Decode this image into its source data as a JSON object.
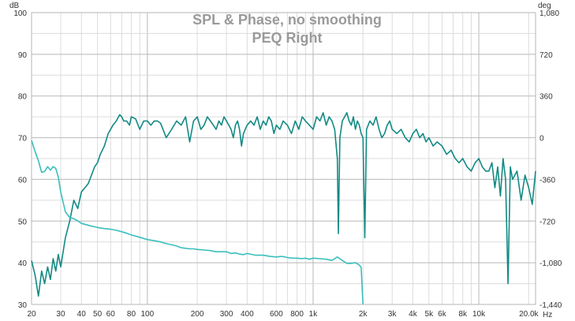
{
  "chart_data": {
    "type": "line",
    "title": "SPL & Phase, no smoothing",
    "subtitle": "PEQ Right",
    "ylabel": "dB",
    "y2label": "deg",
    "xunit": "Hz",
    "xscale": "log",
    "xlim": [
      20,
      22000
    ],
    "ylim": [
      30,
      100
    ],
    "y2lim": [
      -1440,
      1080
    ],
    "grid": true,
    "x_ticks": [
      20,
      30,
      40,
      50,
      60,
      80,
      100,
      200,
      300,
      400,
      600,
      800,
      1000,
      2000,
      3000,
      4000,
      5000,
      6000,
      8000,
      10000,
      20000
    ],
    "x_tick_labels": [
      "20",
      "30",
      "40",
      "50",
      "60",
      "80",
      "100",
      "200",
      "300",
      "400",
      "600",
      "800",
      "1k",
      "2k",
      "3k",
      "4k",
      "5k",
      "6k",
      "8k",
      "10k",
      "20.0k"
    ],
    "y_ticks": [
      30,
      40,
      50,
      60,
      70,
      80,
      90,
      100
    ],
    "y_tick_labels": [
      "30",
      "40",
      "50",
      "60",
      "70",
      "80",
      "90",
      "100"
    ],
    "y2_ticks": [
      -1440,
      -1080,
      -720,
      -360,
      0,
      360,
      720,
      1080
    ],
    "y2_tick_labels": [
      "-1,440",
      "-1,080",
      "-720",
      "-360",
      "0",
      "360",
      "720",
      "1,080"
    ],
    "series": [
      {
        "name": "",
        "axis": "left",
        "color": "#128a84",
        "x": [
          20,
          21,
          22,
          23,
          24,
          25,
          26,
          27,
          28,
          29,
          30,
          32,
          34,
          36,
          38,
          40,
          42,
          44,
          46,
          48,
          50,
          52,
          55,
          58,
          60,
          62,
          65,
          68,
          70,
          72,
          75,
          78,
          80,
          85,
          90,
          95,
          100,
          105,
          110,
          115,
          120,
          130,
          140,
          150,
          160,
          170,
          180,
          190,
          200,
          210,
          220,
          230,
          240,
          250,
          260,
          270,
          280,
          290,
          300,
          310,
          320,
          330,
          340,
          350,
          360,
          370,
          380,
          400,
          420,
          440,
          460,
          480,
          500,
          520,
          540,
          560,
          580,
          600,
          630,
          660,
          700,
          740,
          780,
          820,
          860,
          900,
          950,
          1000,
          1050,
          1100,
          1150,
          1200,
          1250,
          1300,
          1350,
          1400,
          1420,
          1450,
          1500,
          1550,
          1600,
          1650,
          1700,
          1750,
          1800,
          1850,
          1900,
          1950,
          2000,
          2050,
          2100,
          2200,
          2300,
          2400,
          2500,
          2600,
          2700,
          2800,
          2900,
          3000,
          3200,
          3400,
          3600,
          3800,
          4000,
          4200,
          4400,
          4600,
          4800,
          5000,
          5300,
          5600,
          6000,
          6400,
          6800,
          7200,
          7600,
          8000,
          8500,
          9000,
          9500,
          10000,
          10500,
          11000,
          11500,
          12000,
          12500,
          13000,
          13500,
          14000,
          14500,
          15000,
          15500,
          16000,
          17000,
          18000,
          19000,
          20000,
          21000,
          22000
        ],
        "values": [
          40.5,
          37,
          32,
          38,
          35,
          39,
          36,
          41,
          38,
          42,
          39,
          46,
          50,
          55,
          53,
          57,
          58,
          59,
          61,
          63,
          64,
          66,
          68,
          71,
          72,
          73,
          74,
          75.5,
          75,
          74,
          74,
          73,
          75,
          74.5,
          72,
          74,
          74,
          73,
          74,
          74,
          73.5,
          70,
          72,
          74,
          73,
          75,
          69,
          74,
          75,
          72,
          73,
          75,
          74,
          73,
          72,
          74,
          73,
          75,
          74,
          73,
          72,
          70,
          73,
          74,
          72,
          68,
          71,
          73,
          74,
          73,
          75,
          72,
          74,
          73,
          75,
          74,
          71,
          73,
          72,
          74,
          73,
          71,
          74,
          72,
          75,
          74,
          73,
          72,
          75,
          74,
          76,
          73,
          75,
          74,
          72,
          65,
          47,
          70,
          74,
          75,
          76,
          74,
          73,
          75,
          72,
          74,
          73,
          71,
          70,
          46,
          72,
          74,
          73,
          75,
          72,
          70,
          71,
          73,
          74,
          72,
          71,
          72,
          70,
          69,
          71,
          72,
          70,
          71,
          69,
          70,
          68,
          69,
          68,
          66,
          67,
          65,
          64,
          65,
          63,
          62,
          64,
          65,
          63,
          62,
          62,
          64,
          58,
          63,
          56,
          65,
          60,
          35,
          63,
          60,
          62,
          55,
          61,
          58,
          54,
          62
        ]
      },
      {
        "name": "",
        "axis": "right",
        "color": "#3abfbd",
        "x": [
          20,
          21,
          22,
          23,
          24,
          25,
          26,
          27,
          28,
          29,
          30,
          32,
          34,
          36,
          38,
          40,
          45,
          50,
          55,
          60,
          65,
          70,
          75,
          80,
          90,
          100,
          110,
          120,
          130,
          140,
          150,
          160,
          170,
          180,
          190,
          200,
          220,
          240,
          260,
          280,
          300,
          320,
          340,
          360,
          380,
          400,
          450,
          500,
          550,
          600,
          650,
          700,
          750,
          800,
          850,
          900,
          950,
          1000,
          1100,
          1200,
          1300,
          1400,
          1500,
          1600,
          1700,
          1800,
          1900,
          1950,
          2000
        ],
        "values": [
          -24,
          -120,
          -200,
          -300,
          -290,
          -250,
          -280,
          -250,
          -265,
          -340,
          -470,
          -640,
          -690,
          -700,
          -718,
          -740,
          -760,
          -775,
          -785,
          -790,
          -800,
          -812,
          -825,
          -840,
          -860,
          -880,
          -890,
          -900,
          -915,
          -925,
          -935,
          -950,
          -955,
          -960,
          -960,
          -965,
          -970,
          -975,
          -985,
          -985,
          -985,
          -1000,
          -995,
          -1005,
          -1010,
          -1000,
          -1015,
          -1015,
          -1025,
          -1030,
          -1025,
          -1035,
          -1040,
          -1040,
          -1045,
          -1040,
          -1050,
          -1040,
          -1045,
          -1050,
          -1060,
          -1030,
          -1060,
          -1085,
          -1085,
          -1080,
          -1100,
          -1120,
          -1440
        ]
      }
    ]
  }
}
